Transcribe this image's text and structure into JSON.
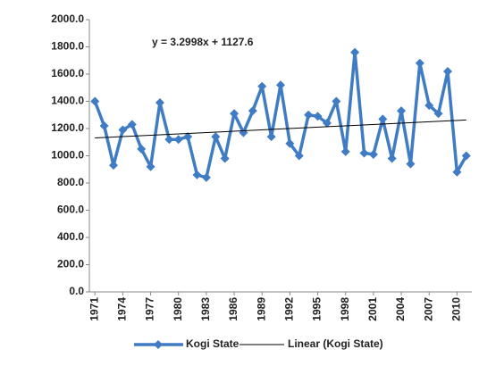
{
  "chart_data": {
    "type": "line",
    "annotation": "y = 3.2998x + 1127.6",
    "x": [
      1971,
      1972,
      1973,
      1974,
      1975,
      1976,
      1977,
      1978,
      1979,
      1980,
      1981,
      1982,
      1983,
      1984,
      1985,
      1986,
      1987,
      1988,
      1989,
      1990,
      1991,
      1992,
      1993,
      1994,
      1995,
      1996,
      1997,
      1998,
      1999,
      2000,
      2001,
      2002,
      2003,
      2004,
      2005,
      2006,
      2007,
      2008,
      2009,
      2010,
      2011
    ],
    "series": [
      {
        "name": "Kogi State",
        "color": "#3f7cc4",
        "values": [
          1400,
          1220,
          930,
          1190,
          1230,
          1050,
          920,
          1390,
          1120,
          1120,
          1140,
          860,
          840,
          1140,
          980,
          1310,
          1170,
          1330,
          1510,
          1140,
          1520,
          1090,
          1000,
          1300,
          1290,
          1240,
          1400,
          1030,
          1760,
          1020,
          1010,
          1270,
          980,
          1330,
          940,
          1680,
          1370,
          1310,
          1620,
          880,
          1000
        ]
      }
    ],
    "trend": {
      "name": "Linear (Kogi State)",
      "color": "#000000",
      "x": [
        1971,
        2011
      ],
      "values": [
        1130.9,
        1262.9
      ]
    },
    "xlim": [
      1970.4,
      2011.6
    ],
    "xticks": [
      1971,
      1974,
      1977,
      1980,
      1983,
      1986,
      1989,
      1992,
      1995,
      1998,
      2001,
      2004,
      2007,
      2010
    ],
    "ylim": [
      0,
      2000
    ],
    "yticks": [
      {
        "value": 0,
        "label": "0.0"
      },
      {
        "value": 200,
        "label": "200.0"
      },
      {
        "value": 400,
        "label": "400.0"
      },
      {
        "value": 600,
        "label": "600.0"
      },
      {
        "value": 800,
        "label": "800.0"
      },
      {
        "value": 1000,
        "label": "1000.0"
      },
      {
        "value": 1200,
        "label": "1200.0"
      },
      {
        "value": 1400,
        "label": "1400.0"
      },
      {
        "value": 1600,
        "label": "1600.0"
      },
      {
        "value": 1800,
        "label": "1800.0"
      },
      {
        "value": 2000,
        "label": "2000.0"
      }
    ]
  }
}
